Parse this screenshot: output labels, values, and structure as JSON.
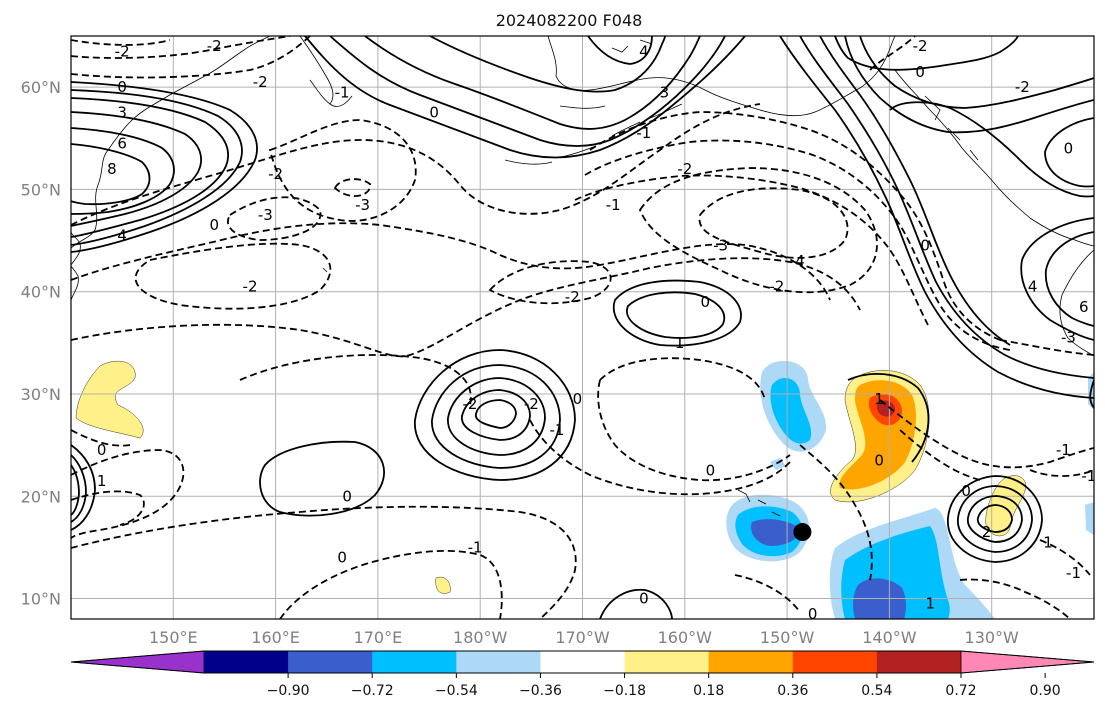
{
  "title": "2024082200 F048",
  "map": {
    "lon_range": [
      140,
      -120
    ],
    "lat_range": [
      8,
      65
    ],
    "lat_ticks": [
      {
        "value": 10,
        "label": "10°N"
      },
      {
        "value": 20,
        "label": "20°N"
      },
      {
        "value": 30,
        "label": "30°N"
      },
      {
        "value": 40,
        "label": "40°N"
      },
      {
        "value": 50,
        "label": "50°N"
      },
      {
        "value": 60,
        "label": "60°N"
      }
    ],
    "lon_ticks": [
      {
        "value": 150,
        "label": "150°E"
      },
      {
        "value": 160,
        "label": "160°E"
      },
      {
        "value": 170,
        "label": "170°E"
      },
      {
        "value": 180,
        "label": "180°W"
      },
      {
        "value": 190,
        "label": "170°W"
      },
      {
        "value": 200,
        "label": "160°W"
      },
      {
        "value": 210,
        "label": "150°W"
      },
      {
        "value": 220,
        "label": "140°W"
      },
      {
        "value": 230,
        "label": "130°W"
      }
    ],
    "storm_marker": {
      "lon": 211.5,
      "lat": 16.5
    },
    "contour_labels": [
      {
        "text": "-2",
        "lon": 145.0,
        "lat": 63.5
      },
      {
        "text": "-2",
        "lon": 154.0,
        "lat": 64.0
      },
      {
        "text": "-2",
        "lon": 158.5,
        "lat": 60.5
      },
      {
        "text": "0",
        "lon": 145.0,
        "lat": 60.0
      },
      {
        "text": "3",
        "lon": 145.0,
        "lat": 57.5
      },
      {
        "text": "6",
        "lon": 145.0,
        "lat": 54.5
      },
      {
        "text": "8",
        "lon": 144.0,
        "lat": 52.0
      },
      {
        "text": "4",
        "lon": 145.0,
        "lat": 45.5
      },
      {
        "text": "0",
        "lon": 154.0,
        "lat": 46.5
      },
      {
        "text": "-1",
        "lon": 166.5,
        "lat": 59.5
      },
      {
        "text": "-2",
        "lon": 160.0,
        "lat": 51.5
      },
      {
        "text": "-3",
        "lon": 159.0,
        "lat": 47.5
      },
      {
        "text": "-3",
        "lon": 168.5,
        "lat": 48.5
      },
      {
        "text": "-2",
        "lon": 157.5,
        "lat": 40.5
      },
      {
        "text": "0",
        "lon": 175.5,
        "lat": 57.5
      },
      {
        "text": "-1",
        "lon": 193.0,
        "lat": 48.5
      },
      {
        "text": "-1",
        "lon": 196.0,
        "lat": 55.5
      },
      {
        "text": "-2",
        "lon": 200.0,
        "lat": 52.0
      },
      {
        "text": "3",
        "lon": 198.0,
        "lat": 59.5
      },
      {
        "text": "4",
        "lon": 196.0,
        "lat": 63.5
      },
      {
        "text": "-3",
        "lon": 203.5,
        "lat": 44.5
      },
      {
        "text": "-4",
        "lon": 211.0,
        "lat": 43.0
      },
      {
        "text": "-2",
        "lon": 189.0,
        "lat": 39.5
      },
      {
        "text": "-2",
        "lon": 209.0,
        "lat": 40.5
      },
      {
        "text": "0",
        "lon": 202.0,
        "lat": 39.0
      },
      {
        "text": "1",
        "lon": 199.5,
        "lat": 35.0
      },
      {
        "text": "0",
        "lon": 223.5,
        "lat": 44.5
      },
      {
        "text": "4",
        "lon": 234.0,
        "lat": 40.5
      },
      {
        "text": "6",
        "lon": 239.0,
        "lat": 38.5
      },
      {
        "text": "-3",
        "lon": 237.5,
        "lat": 35.5
      },
      {
        "text": "0",
        "lon": 223.0,
        "lat": 61.5
      },
      {
        "text": "-2",
        "lon": 223.0,
        "lat": 64.0
      },
      {
        "text": "-2",
        "lon": 233.0,
        "lat": 60.0
      },
      {
        "text": "0",
        "lon": 237.5,
        "lat": 54.0
      },
      {
        "text": "-2",
        "lon": 179.0,
        "lat": 29.0
      },
      {
        "text": "-2",
        "lon": 185.0,
        "lat": 29.0
      },
      {
        "text": "-1",
        "lon": 187.5,
        "lat": 26.5
      },
      {
        "text": "0",
        "lon": 189.5,
        "lat": 29.5
      },
      {
        "text": "0",
        "lon": 167.0,
        "lat": 20.0
      },
      {
        "text": "0",
        "lon": 166.5,
        "lat": 14.0
      },
      {
        "text": "-1",
        "lon": 179.5,
        "lat": 15.0
      },
      {
        "text": "-1",
        "lon": 136.5,
        "lat": 16.5
      },
      {
        "text": "0",
        "lon": 143.0,
        "lat": 24.5
      },
      {
        "text": "1",
        "lon": 143.0,
        "lat": 21.5
      },
      {
        "text": "0",
        "lon": 196.0,
        "lat": 10.0
      },
      {
        "text": "0",
        "lon": 212.5,
        "lat": 8.5
      },
      {
        "text": "0",
        "lon": 202.5,
        "lat": 22.5
      },
      {
        "text": "1",
        "lon": 219.0,
        "lat": 29.5
      },
      {
        "text": "0",
        "lon": 219.0,
        "lat": 23.5
      },
      {
        "text": "1",
        "lon": 224.0,
        "lat": 9.5
      },
      {
        "text": "0",
        "lon": 227.5,
        "lat": 20.5
      },
      {
        "text": "2",
        "lon": 229.5,
        "lat": 16.5
      },
      {
        "text": "1",
        "lon": 235.5,
        "lat": 15.5
      },
      {
        "text": "-1",
        "lon": 237.0,
        "lat": 24.5
      },
      {
        "text": "-1",
        "lon": 239.5,
        "lat": 22.0
      },
      {
        "text": "-1",
        "lon": 238.0,
        "lat": 12.5
      }
    ]
  },
  "colorbar": {
    "colors": [
      "#9932cc",
      "#00008b",
      "#3a5fcd",
      "#00bfff",
      "#add8f6",
      "#ffffff",
      "#fff08a",
      "#ffa500",
      "#ff4500",
      "#b22222",
      "#ff88b4"
    ],
    "tick_labels": [
      "−0.90",
      "−0.72",
      "−0.54",
      "−0.36",
      "−0.18",
      "0.18",
      "0.36",
      "0.54",
      "0.72",
      "0.90"
    ]
  }
}
